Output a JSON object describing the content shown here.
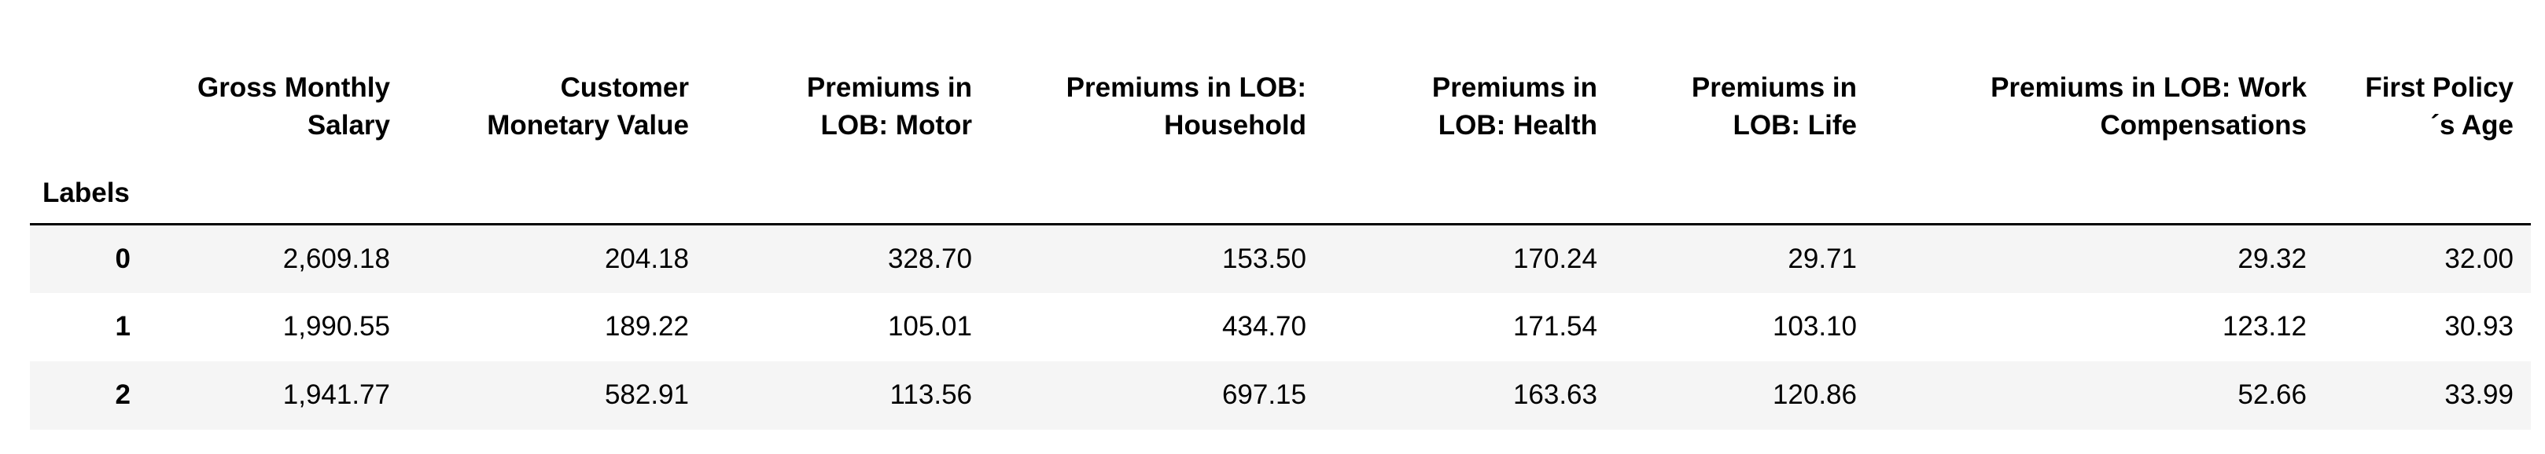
{
  "table": {
    "index_name": "Labels",
    "columns": [
      {
        "line1": "Gross Monthly",
        "line2": "Salary"
      },
      {
        "line1": "Customer",
        "line2": "Monetary Value"
      },
      {
        "line1": "Premiums in",
        "line2": "LOB: Motor"
      },
      {
        "line1": "Premiums in LOB:",
        "line2": "Household"
      },
      {
        "line1": "Premiums in",
        "line2": "LOB: Health"
      },
      {
        "line1": "Premiums in",
        "line2": "LOB: Life"
      },
      {
        "line1": "Premiums in LOB: Work",
        "line2": "Compensations"
      },
      {
        "line1": "First Policy",
        "line2": "´s Age"
      }
    ],
    "rows": [
      {
        "label": "0",
        "values": [
          "2,609.18",
          "204.18",
          "328.70",
          "153.50",
          "170.24",
          "29.71",
          "29.32",
          "32.00"
        ]
      },
      {
        "label": "1",
        "values": [
          "1,990.55",
          "189.22",
          "105.01",
          "434.70",
          "171.54",
          "103.10",
          "123.12",
          "30.93"
        ]
      },
      {
        "label": "2",
        "values": [
          "1,941.77",
          "582.91",
          "113.56",
          "697.15",
          "163.63",
          "120.86",
          "52.66",
          "33.99"
        ]
      }
    ]
  }
}
